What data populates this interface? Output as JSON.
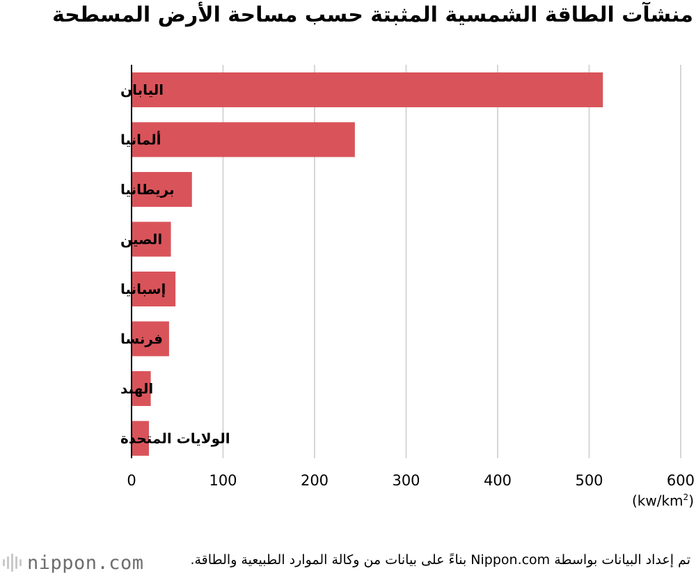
{
  "title": "منشآت الطاقة الشمسية المثبتة حسب مساحة الأرض المسطحة",
  "chart_data": {
    "type": "bar",
    "orientation": "horizontal",
    "categories": [
      "اليابان",
      "ألمانيا",
      "بريطانيا",
      "الصين",
      "إسبانيا",
      "فرنسا",
      "الهند",
      "الولايات المتحدة"
    ],
    "values": [
      515,
      244,
      66,
      43,
      48,
      41,
      21,
      19
    ],
    "xlim": [
      0,
      600
    ],
    "xticks": [
      0,
      100,
      200,
      300,
      400,
      500,
      600
    ],
    "xlabel_unit": "kw/km",
    "xlabel_sup": "2",
    "grid": true,
    "bar_color": "#d9545a"
  },
  "source": "تم إعداد البيانات بواسطة Nippon.com بناءً على بيانات من وكالة الموارد الطبيعية والطاقة.",
  "logo": "nippon.com"
}
